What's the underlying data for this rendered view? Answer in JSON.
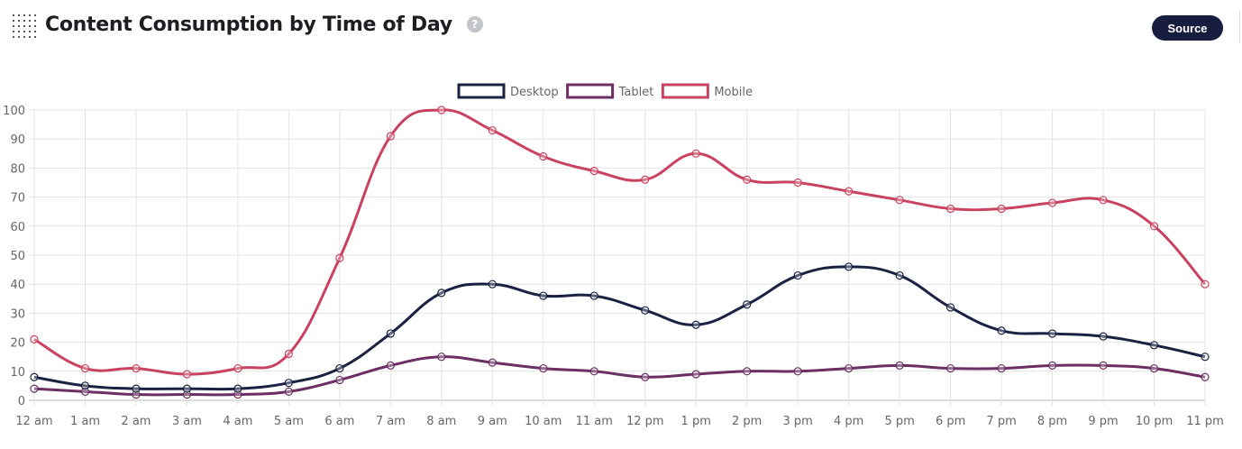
{
  "header": {
    "title": "Content Consumption by Time of Day",
    "help_icon": "question-circle-icon",
    "grip_icon": "drag-grip-icon",
    "source_label": "Source",
    "help_label": "?"
  },
  "chart_data": {
    "type": "line",
    "title": "",
    "xlabel": "",
    "ylabel": "",
    "ylim": [
      0,
      100
    ],
    "yticks": [
      0,
      10,
      20,
      30,
      40,
      50,
      60,
      70,
      80,
      90,
      100
    ],
    "grid": true,
    "legend": "top",
    "categories": [
      "12 am",
      "1 am",
      "2 am",
      "3 am",
      "4 am",
      "5 am",
      "6 am",
      "7 am",
      "8 am",
      "9 am",
      "10 am",
      "11 am",
      "12 pm",
      "1 pm",
      "2 pm",
      "3 pm",
      "4 pm",
      "5 pm",
      "6 pm",
      "7 pm",
      "8 pm",
      "9 pm",
      "10 pm",
      "11 pm"
    ],
    "series": [
      {
        "name": "Desktop",
        "color": "#1b2142",
        "values": [
          8,
          5,
          4,
          4,
          4,
          6,
          11,
          23,
          37,
          40,
          36,
          36,
          31,
          26,
          33,
          43,
          46,
          43,
          32,
          24,
          23,
          22,
          19,
          15
        ]
      },
      {
        "name": "Tablet",
        "color": "#6b2f63",
        "values": [
          4,
          3,
          2,
          2,
          2,
          3,
          7,
          12,
          15,
          13,
          11,
          10,
          8,
          9,
          10,
          10,
          11,
          12,
          11,
          11,
          12,
          12,
          11,
          8
        ]
      },
      {
        "name": "Mobile",
        "color": "#c9425f",
        "values": [
          21,
          11,
          11,
          9,
          11,
          16,
          49,
          91,
          100,
          93,
          84,
          79,
          76,
          85,
          76,
          75,
          72,
          69,
          66,
          66,
          68,
          69,
          60,
          40
        ]
      }
    ]
  }
}
